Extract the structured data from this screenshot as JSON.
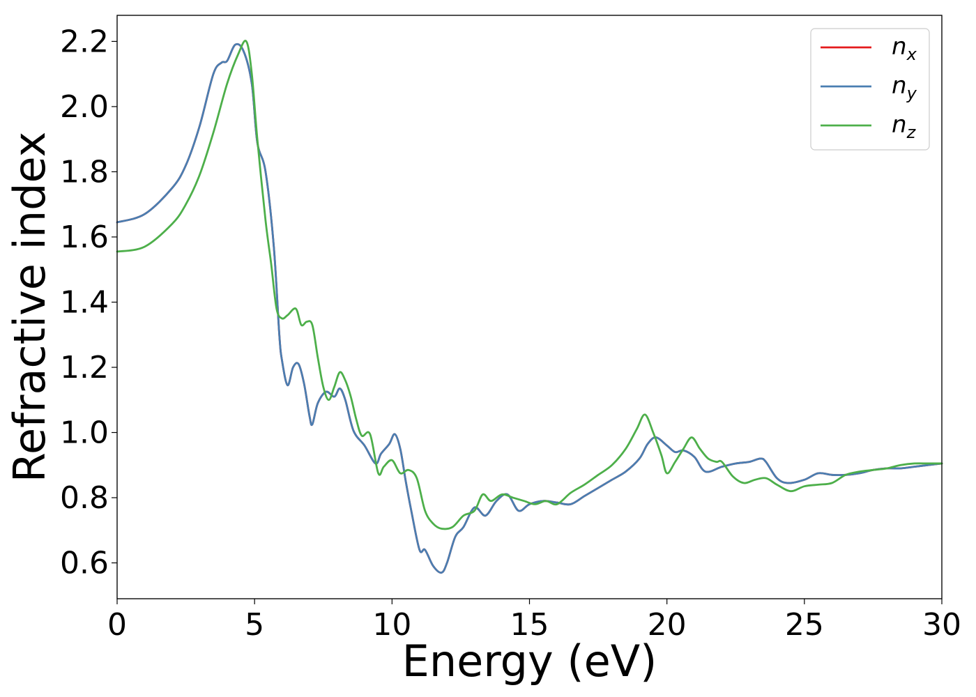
{
  "chart_data": {
    "type": "line",
    "xlabel": "Energy (eV)",
    "ylabel": "Refractive index",
    "xlim": [
      0,
      30
    ],
    "ylim": [
      0.49,
      2.28
    ],
    "xticks": [
      0,
      5,
      10,
      15,
      20,
      25,
      30
    ],
    "xtick_labels": [
      "0",
      "5",
      "10",
      "15",
      "20",
      "25",
      "30"
    ],
    "yticks": [
      0.6,
      0.8,
      1.0,
      1.2,
      1.4,
      1.6,
      1.8,
      2.0,
      2.2
    ],
    "ytick_labels": [
      "0.6",
      "0.8",
      "1.0",
      "1.2",
      "1.4",
      "1.6",
      "1.8",
      "2.0",
      "2.2"
    ],
    "grid": false,
    "legend_position": "top-right",
    "series": [
      {
        "name": "n",
        "subscript": "x",
        "color": "#e41a1c",
        "x": [
          0,
          1,
          2,
          2.5,
          3,
          3.5,
          3.8,
          4.0,
          4.3,
          4.6,
          4.9,
          5.1,
          5.4,
          5.7,
          5.9,
          6.0,
          6.2,
          6.4,
          6.6,
          6.8,
          7.0,
          7.1,
          7.3,
          7.6,
          7.9,
          8.1,
          8.3,
          8.6,
          9.0,
          9.4,
          9.6,
          9.9,
          10.1,
          10.3,
          10.5,
          10.7,
          11.0,
          11.2,
          11.5,
          11.8,
          12.0,
          12.3,
          12.6,
          13.0,
          13.4,
          13.8,
          14.2,
          14.6,
          15.0,
          15.5,
          16.0,
          16.5,
          17.0,
          17.5,
          18.0,
          18.5,
          19.0,
          19.3,
          19.6,
          20.0,
          20.3,
          20.6,
          21.0,
          21.4,
          22.0,
          22.5,
          23.0,
          23.4,
          23.6,
          24.0,
          24.4,
          25.0,
          25.5,
          26.0,
          26.5,
          27.0,
          27.5,
          28.0,
          28.5,
          29.0,
          29.5,
          30.0
        ],
        "y": [
          1.645,
          1.67,
          1.75,
          1.82,
          1.94,
          2.1,
          2.135,
          2.14,
          2.19,
          2.17,
          2.07,
          1.89,
          1.8,
          1.57,
          1.3,
          1.22,
          1.145,
          1.2,
          1.21,
          1.15,
          1.05,
          1.025,
          1.09,
          1.125,
          1.11,
          1.135,
          1.1,
          1.005,
          0.96,
          0.905,
          0.935,
          0.965,
          0.995,
          0.95,
          0.85,
          0.76,
          0.64,
          0.64,
          0.59,
          0.57,
          0.6,
          0.68,
          0.71,
          0.77,
          0.745,
          0.79,
          0.81,
          0.76,
          0.78,
          0.79,
          0.785,
          0.78,
          0.805,
          0.83,
          0.855,
          0.88,
          0.92,
          0.965,
          0.985,
          0.96,
          0.94,
          0.945,
          0.925,
          0.88,
          0.895,
          0.905,
          0.91,
          0.92,
          0.91,
          0.86,
          0.845,
          0.855,
          0.875,
          0.87,
          0.87,
          0.875,
          0.885,
          0.89,
          0.89,
          0.895,
          0.9,
          0.905
        ]
      },
      {
        "name": "n",
        "subscript": "y",
        "color": "#4a7eb1",
        "x": [
          0,
          1,
          2,
          2.5,
          3,
          3.5,
          3.8,
          4.0,
          4.3,
          4.6,
          4.9,
          5.1,
          5.4,
          5.7,
          5.9,
          6.0,
          6.2,
          6.4,
          6.6,
          6.8,
          7.0,
          7.1,
          7.3,
          7.6,
          7.9,
          8.1,
          8.3,
          8.6,
          9.0,
          9.4,
          9.6,
          9.9,
          10.1,
          10.3,
          10.5,
          10.7,
          11.0,
          11.2,
          11.5,
          11.8,
          12.0,
          12.3,
          12.6,
          13.0,
          13.4,
          13.8,
          14.2,
          14.6,
          15.0,
          15.5,
          16.0,
          16.5,
          17.0,
          17.5,
          18.0,
          18.5,
          19.0,
          19.3,
          19.6,
          20.0,
          20.3,
          20.6,
          21.0,
          21.4,
          22.0,
          22.5,
          23.0,
          23.4,
          23.6,
          24.0,
          24.4,
          25.0,
          25.5,
          26.0,
          26.5,
          27.0,
          27.5,
          28.0,
          28.5,
          29.0,
          29.5,
          30.0
        ],
        "y": [
          1.645,
          1.67,
          1.75,
          1.82,
          1.94,
          2.1,
          2.135,
          2.14,
          2.19,
          2.17,
          2.07,
          1.89,
          1.8,
          1.57,
          1.3,
          1.22,
          1.145,
          1.2,
          1.21,
          1.15,
          1.05,
          1.025,
          1.09,
          1.125,
          1.11,
          1.135,
          1.1,
          1.005,
          0.96,
          0.905,
          0.935,
          0.965,
          0.995,
          0.95,
          0.85,
          0.76,
          0.64,
          0.64,
          0.59,
          0.57,
          0.6,
          0.68,
          0.71,
          0.77,
          0.745,
          0.79,
          0.81,
          0.76,
          0.78,
          0.79,
          0.785,
          0.78,
          0.805,
          0.83,
          0.855,
          0.88,
          0.92,
          0.965,
          0.985,
          0.96,
          0.94,
          0.945,
          0.925,
          0.88,
          0.895,
          0.905,
          0.91,
          0.92,
          0.91,
          0.86,
          0.845,
          0.855,
          0.875,
          0.87,
          0.87,
          0.875,
          0.885,
          0.89,
          0.89,
          0.895,
          0.9,
          0.905
        ]
      },
      {
        "name": "n",
        "subscript": "z",
        "color": "#4daf4a",
        "x": [
          0,
          1,
          2,
          2.5,
          3,
          3.5,
          4.0,
          4.4,
          4.7,
          4.9,
          5.1,
          5.4,
          5.6,
          5.8,
          6.0,
          6.2,
          6.5,
          6.7,
          6.9,
          7.1,
          7.3,
          7.5,
          7.7,
          7.9,
          8.1,
          8.3,
          8.5,
          8.7,
          8.9,
          9.2,
          9.5,
          9.7,
          10.0,
          10.3,
          10.6,
          10.9,
          11.2,
          11.5,
          11.8,
          12.2,
          12.6,
          13.0,
          13.3,
          13.6,
          14.0,
          14.4,
          14.8,
          15.2,
          15.6,
          16.0,
          16.5,
          17.0,
          17.5,
          18.0,
          18.5,
          18.9,
          19.2,
          19.5,
          19.8,
          20.0,
          20.3,
          20.6,
          20.9,
          21.2,
          21.5,
          21.8,
          22.0,
          22.4,
          22.8,
          23.2,
          23.6,
          24.0,
          24.5,
          25.0,
          25.5,
          26.0,
          26.5,
          27.0,
          27.5,
          28.0,
          28.5,
          29.0,
          29.5,
          30.0
        ],
        "y": [
          1.555,
          1.57,
          1.64,
          1.7,
          1.79,
          1.92,
          2.07,
          2.16,
          2.2,
          2.1,
          1.9,
          1.65,
          1.52,
          1.38,
          1.35,
          1.36,
          1.38,
          1.33,
          1.34,
          1.33,
          1.23,
          1.14,
          1.1,
          1.14,
          1.185,
          1.16,
          1.11,
          1.04,
          0.99,
          0.995,
          0.875,
          0.895,
          0.915,
          0.875,
          0.885,
          0.86,
          0.76,
          0.72,
          0.705,
          0.71,
          0.745,
          0.76,
          0.81,
          0.79,
          0.81,
          0.8,
          0.79,
          0.78,
          0.79,
          0.78,
          0.815,
          0.84,
          0.87,
          0.9,
          0.95,
          1.01,
          1.055,
          1.0,
          0.93,
          0.875,
          0.91,
          0.95,
          0.985,
          0.95,
          0.92,
          0.91,
          0.91,
          0.865,
          0.845,
          0.855,
          0.86,
          0.84,
          0.82,
          0.835,
          0.84,
          0.845,
          0.87,
          0.88,
          0.885,
          0.89,
          0.9,
          0.905,
          0.905,
          0.905
        ]
      }
    ]
  }
}
